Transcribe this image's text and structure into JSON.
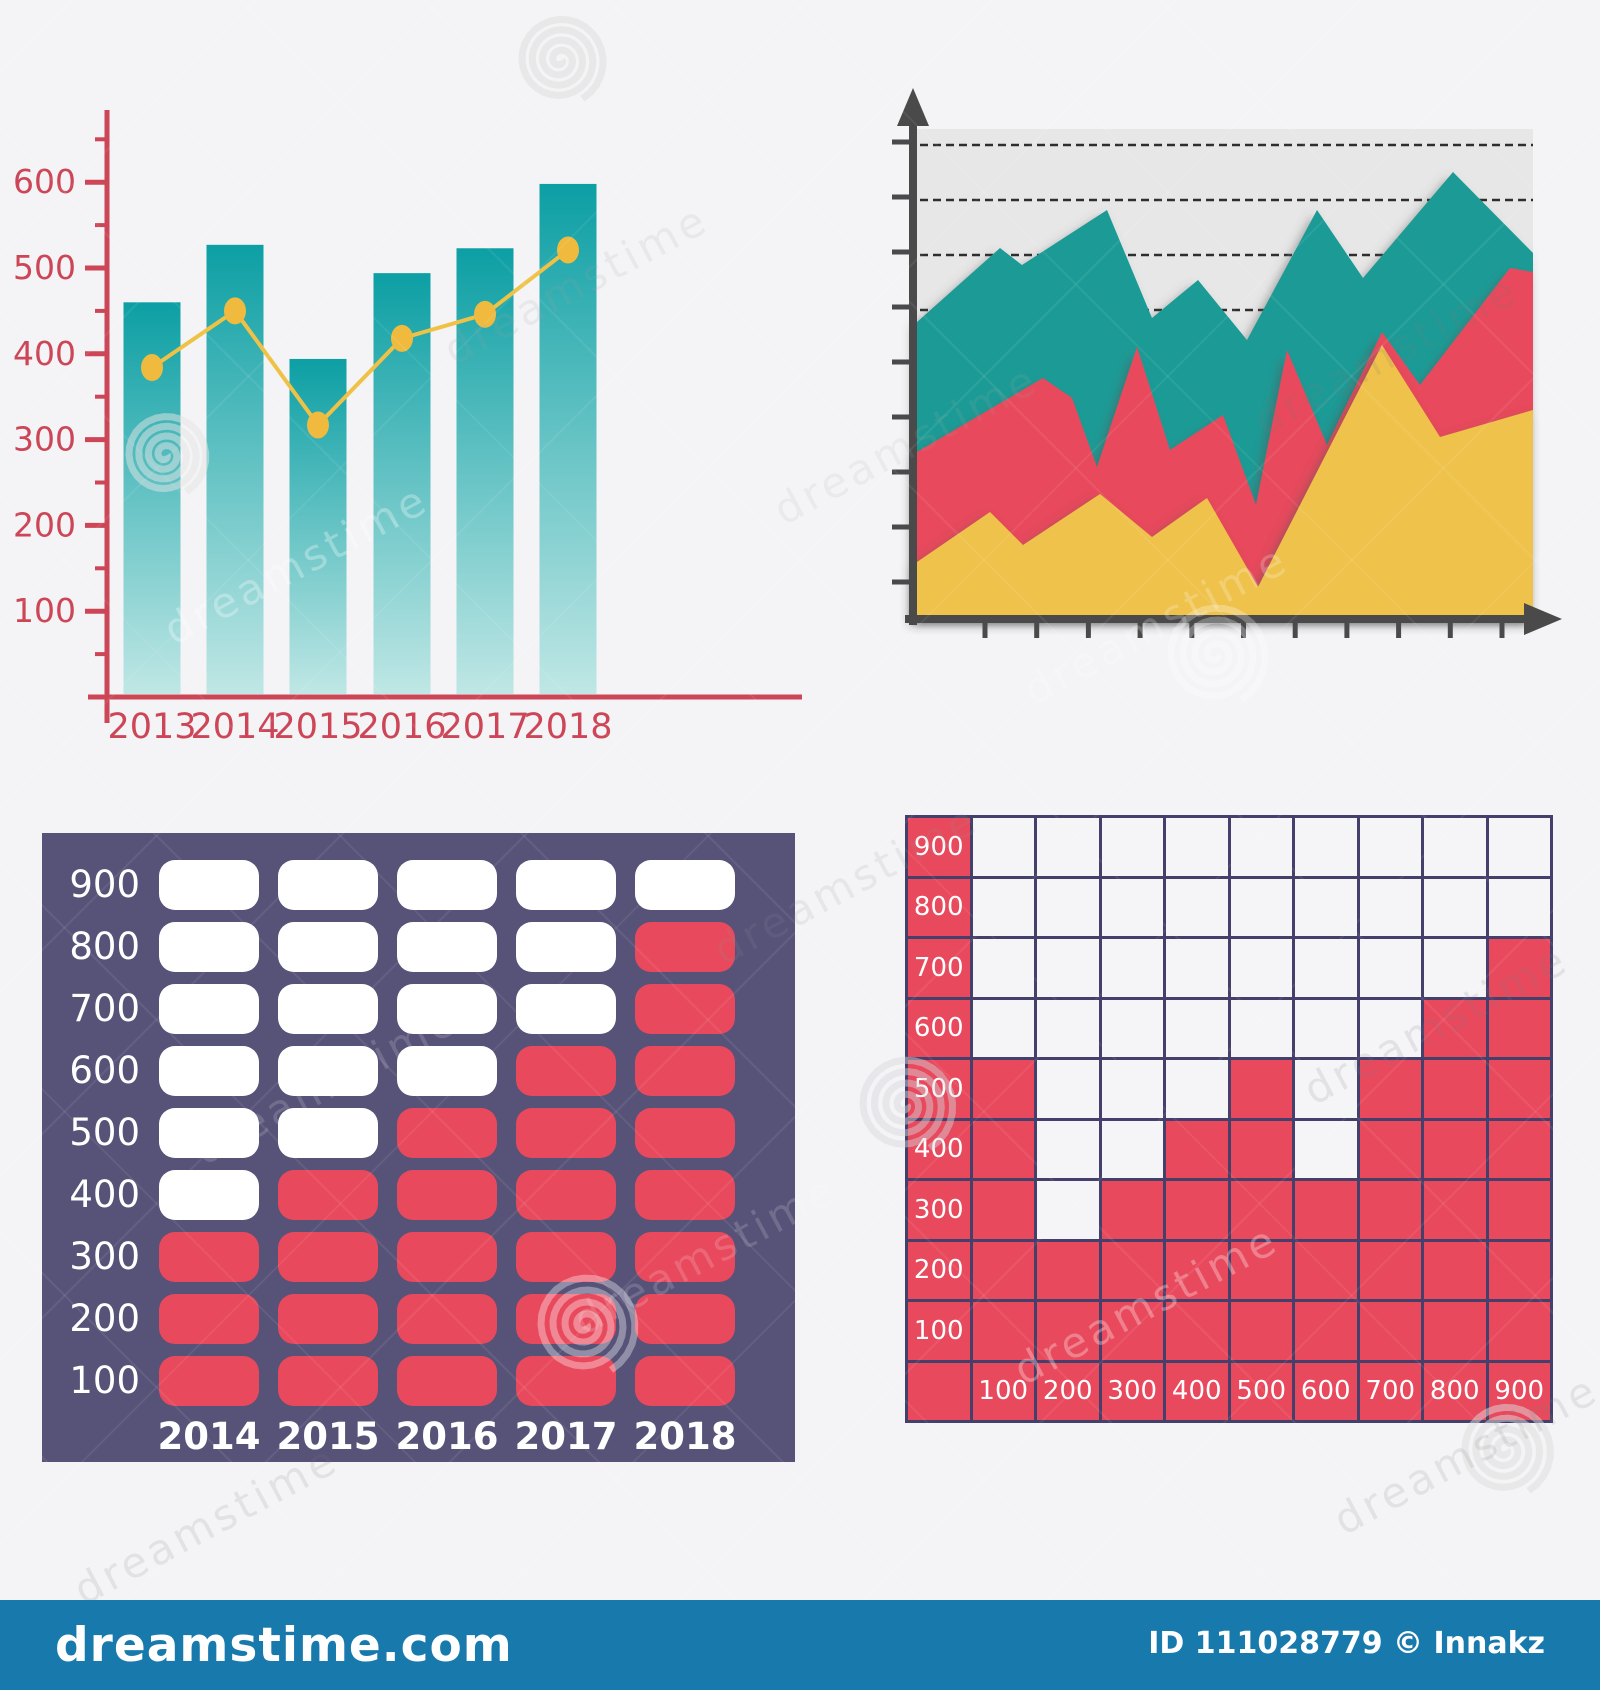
{
  "watermark": {
    "brand": "dreamstime"
  },
  "footer": {
    "site": "dreamstime.com",
    "id_text": "ID 111028779 © Innakz"
  },
  "colors": {
    "page_bg": "#f4f3f5",
    "axis_red": "#cd4657",
    "bar_teal_top": "#0c9fa4",
    "bar_teal_bottom": "#bfe7e5",
    "line_yellow": "#efc246",
    "dot_yellow": "#f0ba3e",
    "area_plot_bg": "#e8e7e7",
    "area_axis": "#4a4a4a",
    "area_teal": "#1a9b96",
    "area_red": "#e8495c",
    "area_yellow": "#efc24b",
    "panel_bg": "#575278",
    "pill_red": "#e8495c",
    "pill_white": "#ffffff",
    "waffle_red": "#e8495c",
    "waffle_border": "#45406b",
    "waffle_white": "#f5f4f6",
    "footer_blue": "#1879ad"
  },
  "chart_data": [
    {
      "type": "bar",
      "variant": "bars-with-line-overlay",
      "categories": [
        "2013",
        "2014",
        "2015",
        "2016",
        "2017",
        "2018"
      ],
      "series": [
        {
          "name": "bars",
          "values": [
            460,
            527,
            394,
            494,
            523,
            598
          ]
        },
        {
          "name": "line",
          "values": [
            384,
            450,
            317,
            418,
            446,
            521
          ]
        }
      ],
      "ylabel": "",
      "xlabel": "",
      "ylim": [
        0,
        680
      ],
      "y_ticks": [
        100,
        200,
        300,
        400,
        500,
        600
      ],
      "grid": false,
      "legend": "none"
    },
    {
      "type": "area",
      "variant": "stacked-jagged-areas, unlabeled axes, dashed gridlines",
      "plot_size": [
        616,
        488
      ],
      "dashed_gridline_y": [
        16,
        71,
        126,
        181
      ],
      "layers": [
        {
          "name": "teal-back",
          "points": [
            [
              0,
              193
            ],
            [
              83,
              119
            ],
            [
              105,
              136
            ],
            [
              190,
              81
            ],
            [
              235,
              189
            ],
            [
              281,
              151
            ],
            [
              330,
              211
            ],
            [
              400,
              81
            ],
            [
              446,
              149
            ],
            [
              536,
              43
            ],
            [
              616,
              124
            ]
          ]
        },
        {
          "name": "red-middle",
          "points": [
            [
              0,
              323
            ],
            [
              126,
              249
            ],
            [
              155,
              269
            ],
            [
              180,
              338
            ],
            [
              220,
              218
            ],
            [
              253,
              321
            ],
            [
              306,
              286
            ],
            [
              339,
              376
            ],
            [
              370,
              221
            ],
            [
              410,
              316
            ],
            [
              465,
              203
            ],
            [
              503,
              256
            ],
            [
              593,
              139
            ],
            [
              616,
              143
            ]
          ]
        },
        {
          "name": "yellow-front",
          "points": [
            [
              0,
              433
            ],
            [
              73,
              383
            ],
            [
              106,
              416
            ],
            [
              183,
              365
            ],
            [
              235,
              408
            ],
            [
              290,
              369
            ],
            [
              341,
              458
            ],
            [
              465,
              216
            ],
            [
              523,
              308
            ],
            [
              616,
              281
            ]
          ]
        }
      ]
    },
    {
      "type": "bar",
      "variant": "pill-matrix-columns",
      "categories": [
        "2014",
        "2015",
        "2016",
        "2017",
        "2018"
      ],
      "values": [
        300,
        400,
        500,
        600,
        800
      ],
      "row_scale": [
        900,
        800,
        700,
        600,
        500,
        400,
        300,
        200,
        100
      ],
      "ylim": [
        0,
        900
      ]
    },
    {
      "type": "heatmap",
      "variant": "waffle-grid-columns",
      "categories": [
        "100",
        "200",
        "300",
        "400",
        "500",
        "600",
        "700",
        "800",
        "900"
      ],
      "values": [
        500,
        200,
        300,
        400,
        500,
        300,
        500,
        600,
        700
      ],
      "row_scale": [
        900,
        800,
        700,
        600,
        500,
        400,
        300,
        200,
        100
      ],
      "ylim": [
        0,
        900
      ]
    }
  ]
}
